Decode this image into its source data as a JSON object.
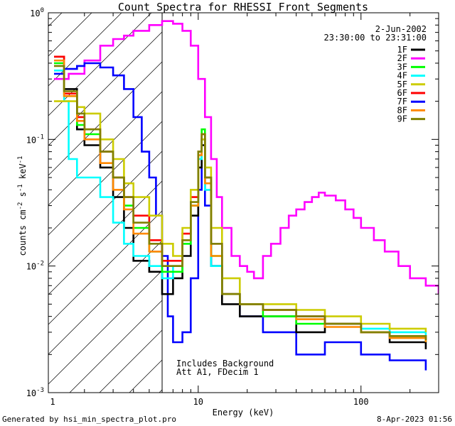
{
  "chart_data": {
    "type": "line",
    "title": "Count Spectra for RHESSI Front Segments",
    "xlabel": "Energy (keV)",
    "ylabel": "counts cm-2 s-1 keV-1",
    "xscale": "log",
    "yscale": "log",
    "xlim": [
      1.2,
      300
    ],
    "ylim": [
      0.001,
      1
    ],
    "x_ticks": [
      {
        "value": 1,
        "label": "1"
      },
      {
        "value": 10,
        "label": "10"
      },
      {
        "value": 100,
        "label": "100"
      }
    ],
    "y_ticks": [
      {
        "value": 1,
        "base": "10",
        "exp": "0"
      },
      {
        "value": 0.1,
        "base": "10",
        "exp": "-1"
      },
      {
        "value": 0.01,
        "base": "10",
        "exp": "-2"
      },
      {
        "value": 0.001,
        "base": "10",
        "exp": "-3"
      }
    ],
    "date": "2-Jun-2002",
    "time_range": "23:30:00 to 23:31:00",
    "annotations": [
      "Includes Background",
      "Att A1, FDecim 1"
    ],
    "shaded_region_energy_range_keV": [
      1.2,
      6.0
    ],
    "series": [
      {
        "name": "2F",
        "color": "#ff00ff",
        "points": [
          [
            1.3,
            0.3
          ],
          [
            1.6,
            0.33
          ],
          [
            2.0,
            0.42
          ],
          [
            2.5,
            0.55
          ],
          [
            3.0,
            0.62
          ],
          [
            3.5,
            0.66
          ],
          [
            4.0,
            0.72
          ],
          [
            5.0,
            0.8
          ],
          [
            6.0,
            0.86
          ],
          [
            7.0,
            0.82
          ],
          [
            8.0,
            0.72
          ],
          [
            9.0,
            0.55
          ],
          [
            10.0,
            0.3
          ],
          [
            11.0,
            0.15
          ],
          [
            12.0,
            0.07
          ],
          [
            13.0,
            0.035
          ],
          [
            14.0,
            0.02
          ],
          [
            16.0,
            0.012
          ],
          [
            18.0,
            0.01
          ],
          [
            20.0,
            0.009
          ],
          [
            22.0,
            0.008
          ],
          [
            25.0,
            0.012
          ],
          [
            28.0,
            0.015
          ],
          [
            32.0,
            0.02
          ],
          [
            36.0,
            0.025
          ],
          [
            40.0,
            0.028
          ],
          [
            45.0,
            0.032
          ],
          [
            50.0,
            0.035
          ],
          [
            55.0,
            0.038
          ],
          [
            60.0,
            0.036
          ],
          [
            70.0,
            0.033
          ],
          [
            80.0,
            0.028
          ],
          [
            90.0,
            0.024
          ],
          [
            100.0,
            0.02
          ],
          [
            120.0,
            0.016
          ],
          [
            140.0,
            0.013
          ],
          [
            170.0,
            0.01
          ],
          [
            200.0,
            0.008
          ],
          [
            250.0,
            0.007
          ],
          [
            300.0,
            0.006
          ]
        ]
      },
      {
        "name": "7F",
        "color": "#0000ff",
        "points": [
          [
            1.3,
            0.33
          ],
          [
            1.5,
            0.36
          ],
          [
            1.8,
            0.38
          ],
          [
            2.0,
            0.4
          ],
          [
            2.5,
            0.37
          ],
          [
            3.0,
            0.32
          ],
          [
            3.5,
            0.25
          ],
          [
            4.0,
            0.15
          ],
          [
            4.5,
            0.08
          ],
          [
            5.0,
            0.05
          ],
          [
            5.5,
            0.025
          ],
          [
            6.0,
            0.012
          ],
          [
            6.5,
            0.004
          ],
          [
            7.0,
            0.0025
          ],
          [
            8.0,
            0.003
          ],
          [
            9.0,
            0.008
          ],
          [
            10.0,
            0.04
          ],
          [
            10.5,
            0.1
          ],
          [
            11.0,
            0.03
          ],
          [
            12.0,
            0.01
          ],
          [
            14.0,
            0.006
          ],
          [
            18.0,
            0.004
          ],
          [
            25.0,
            0.003
          ],
          [
            40.0,
            0.002
          ],
          [
            60.0,
            0.0025
          ],
          [
            100.0,
            0.002
          ],
          [
            150.0,
            0.0018
          ],
          [
            250.0,
            0.0015
          ]
        ]
      },
      {
        "name": "1F",
        "color": "#000000",
        "points": [
          [
            1.3,
            0.45
          ],
          [
            1.5,
            0.25
          ],
          [
            1.8,
            0.12
          ],
          [
            2.0,
            0.09
          ],
          [
            2.5,
            0.06
          ],
          [
            3.0,
            0.035
          ],
          [
            3.5,
            0.02
          ],
          [
            4.0,
            0.011
          ],
          [
            5.0,
            0.009
          ],
          [
            6.0,
            0.006
          ],
          [
            7.0,
            0.008
          ],
          [
            8.0,
            0.012
          ],
          [
            9.0,
            0.025
          ],
          [
            10.0,
            0.06
          ],
          [
            10.5,
            0.09
          ],
          [
            11.0,
            0.04
          ],
          [
            12.0,
            0.01
          ],
          [
            14.0,
            0.005
          ],
          [
            18.0,
            0.004
          ],
          [
            25.0,
            0.004
          ],
          [
            40.0,
            0.003
          ],
          [
            60.0,
            0.0035
          ],
          [
            100.0,
            0.003
          ],
          [
            150.0,
            0.0025
          ],
          [
            250.0,
            0.0022
          ]
        ]
      },
      {
        "name": "3F",
        "color": "#00ff00",
        "points": [
          [
            1.3,
            0.4
          ],
          [
            1.5,
            0.22
          ],
          [
            1.8,
            0.13
          ],
          [
            2.0,
            0.11
          ],
          [
            2.5,
            0.08
          ],
          [
            3.0,
            0.05
          ],
          [
            3.5,
            0.03
          ],
          [
            4.0,
            0.02
          ],
          [
            5.0,
            0.013
          ],
          [
            6.0,
            0.009
          ],
          [
            7.0,
            0.009
          ],
          [
            8.0,
            0.015
          ],
          [
            9.0,
            0.03
          ],
          [
            10.0,
            0.08
          ],
          [
            10.5,
            0.12
          ],
          [
            11.0,
            0.05
          ],
          [
            12.0,
            0.012
          ],
          [
            14.0,
            0.006
          ],
          [
            18.0,
            0.005
          ],
          [
            25.0,
            0.004
          ],
          [
            40.0,
            0.0035
          ],
          [
            60.0,
            0.0035
          ],
          [
            100.0,
            0.003
          ],
          [
            150.0,
            0.0028
          ],
          [
            250.0,
            0.0025
          ]
        ]
      },
      {
        "name": "4F",
        "color": "#00ffff",
        "points": [
          [
            1.3,
            0.35
          ],
          [
            1.5,
            0.2
          ],
          [
            1.6,
            0.07
          ],
          [
            1.8,
            0.05
          ],
          [
            2.0,
            0.05
          ],
          [
            2.5,
            0.035
          ],
          [
            3.0,
            0.022
          ],
          [
            3.5,
            0.015
          ],
          [
            4.0,
            0.012
          ],
          [
            5.0,
            0.01
          ],
          [
            6.0,
            0.008
          ],
          [
            7.0,
            0.01
          ],
          [
            8.0,
            0.015
          ],
          [
            9.0,
            0.03
          ],
          [
            10.0,
            0.07
          ],
          [
            10.5,
            0.1
          ],
          [
            11.0,
            0.04
          ],
          [
            12.0,
            0.01
          ],
          [
            14.0,
            0.006
          ],
          [
            18.0,
            0.005
          ],
          [
            25.0,
            0.0045
          ],
          [
            40.0,
            0.004
          ],
          [
            60.0,
            0.0035
          ],
          [
            100.0,
            0.0032
          ],
          [
            150.0,
            0.003
          ],
          [
            250.0,
            0.0028
          ]
        ]
      },
      {
        "name": "5F",
        "color": "#cccc00",
        "points": [
          [
            1.3,
            0.2
          ],
          [
            1.5,
            0.2
          ],
          [
            1.8,
            0.18
          ],
          [
            2.0,
            0.16
          ],
          [
            2.5,
            0.1
          ],
          [
            3.0,
            0.07
          ],
          [
            3.5,
            0.045
          ],
          [
            4.0,
            0.035
          ],
          [
            5.0,
            0.025
          ],
          [
            6.0,
            0.015
          ],
          [
            7.0,
            0.012
          ],
          [
            8.0,
            0.02
          ],
          [
            9.0,
            0.04
          ],
          [
            10.0,
            0.08
          ],
          [
            10.5,
            0.1
          ],
          [
            11.0,
            0.06
          ],
          [
            12.0,
            0.02
          ],
          [
            14.0,
            0.008
          ],
          [
            18.0,
            0.005
          ],
          [
            25.0,
            0.005
          ],
          [
            40.0,
            0.0045
          ],
          [
            60.0,
            0.004
          ],
          [
            100.0,
            0.0035
          ],
          [
            150.0,
            0.0032
          ],
          [
            250.0,
            0.003
          ]
        ]
      },
      {
        "name": "6F",
        "color": "#ff0000",
        "points": [
          [
            1.3,
            0.45
          ],
          [
            1.5,
            0.23
          ],
          [
            1.8,
            0.15
          ],
          [
            2.0,
            0.12
          ],
          [
            2.5,
            0.08
          ],
          [
            3.0,
            0.05
          ],
          [
            3.5,
            0.035
          ],
          [
            4.0,
            0.025
          ],
          [
            5.0,
            0.016
          ],
          [
            6.0,
            0.011
          ],
          [
            7.0,
            0.011
          ],
          [
            8.0,
            0.018
          ],
          [
            9.0,
            0.035
          ],
          [
            10.0,
            0.08
          ],
          [
            10.5,
            0.11
          ],
          [
            11.0,
            0.05
          ],
          [
            12.0,
            0.015
          ],
          [
            14.0,
            0.006
          ],
          [
            18.0,
            0.005
          ],
          [
            25.0,
            0.0045
          ],
          [
            40.0,
            0.004
          ],
          [
            60.0,
            0.0035
          ],
          [
            100.0,
            0.003
          ],
          [
            150.0,
            0.0028
          ],
          [
            250.0,
            0.0026
          ]
        ]
      },
      {
        "name": "8F",
        "color": "#ff8800",
        "points": [
          [
            1.3,
            0.42
          ],
          [
            1.5,
            0.22
          ],
          [
            1.8,
            0.14
          ],
          [
            2.0,
            0.1
          ],
          [
            2.5,
            0.065
          ],
          [
            3.0,
            0.04
          ],
          [
            3.5,
            0.028
          ],
          [
            4.0,
            0.018
          ],
          [
            5.0,
            0.013
          ],
          [
            6.0,
            0.01
          ],
          [
            7.0,
            0.01
          ],
          [
            8.0,
            0.016
          ],
          [
            9.0,
            0.03
          ],
          [
            10.0,
            0.075
          ],
          [
            10.5,
            0.1
          ],
          [
            11.0,
            0.045
          ],
          [
            12.0,
            0.012
          ],
          [
            14.0,
            0.006
          ],
          [
            18.0,
            0.005
          ],
          [
            25.0,
            0.0045
          ],
          [
            40.0,
            0.0038
          ],
          [
            60.0,
            0.0033
          ],
          [
            100.0,
            0.003
          ],
          [
            150.0,
            0.0027
          ],
          [
            250.0,
            0.0025
          ]
        ]
      },
      {
        "name": "9F",
        "color": "#808000",
        "points": [
          [
            1.3,
            0.38
          ],
          [
            1.5,
            0.24
          ],
          [
            1.8,
            0.16
          ],
          [
            2.0,
            0.12
          ],
          [
            2.5,
            0.08
          ],
          [
            3.0,
            0.05
          ],
          [
            3.5,
            0.035
          ],
          [
            4.0,
            0.022
          ],
          [
            5.0,
            0.015
          ],
          [
            6.0,
            0.01
          ],
          [
            7.0,
            0.01
          ],
          [
            8.0,
            0.016
          ],
          [
            9.0,
            0.032
          ],
          [
            10.0,
            0.08
          ],
          [
            10.5,
            0.11
          ],
          [
            11.0,
            0.05
          ],
          [
            12.0,
            0.015
          ],
          [
            14.0,
            0.006
          ],
          [
            18.0,
            0.005
          ],
          [
            25.0,
            0.0045
          ],
          [
            40.0,
            0.004
          ],
          [
            60.0,
            0.0035
          ],
          [
            100.0,
            0.003
          ],
          [
            150.0,
            0.0028
          ],
          [
            250.0,
            0.0026
          ]
        ]
      }
    ],
    "legend": [
      {
        "label": "1F",
        "color": "#000000"
      },
      {
        "label": "2F",
        "color": "#ff00ff"
      },
      {
        "label": "3F",
        "color": "#00ff00"
      },
      {
        "label": "4F",
        "color": "#00ffff"
      },
      {
        "label": "5F",
        "color": "#cccc00"
      },
      {
        "label": "6F",
        "color": "#ff0000"
      },
      {
        "label": "7F",
        "color": "#0000ff"
      },
      {
        "label": "8F",
        "color": "#ff8800"
      },
      {
        "label": "9F",
        "color": "#808000"
      }
    ]
  },
  "footer": {
    "generated_by": "Generated by hsi_min_spectra_plot.pro",
    "timestamp": "8-Apr-2023 01:56"
  }
}
